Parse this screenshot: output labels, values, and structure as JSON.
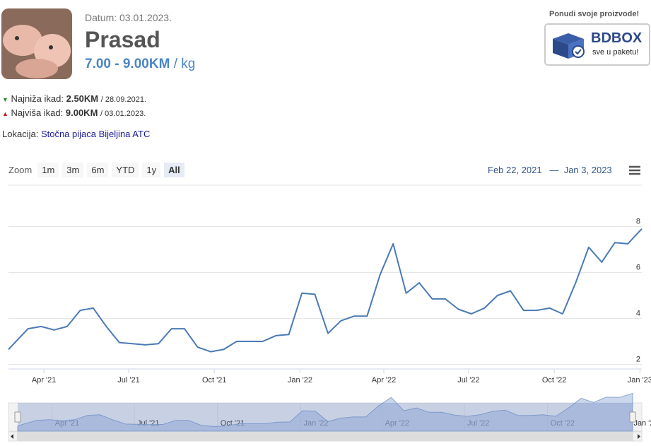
{
  "header": {
    "date": "Datum: 03.01.2023.",
    "title": "Prasad",
    "price": "7.00 - 9.00KM",
    "unit": "/ kg",
    "low_label": "Najniža ikad:",
    "low_value": "2.50KM",
    "low_date": "/ 28.09.2021.",
    "high_label": "Najviša ikad:",
    "high_value": "9.00KM",
    "high_date": "/ 03.01.2023.",
    "location_label": "Lokacija:",
    "location": "Stočna pijaca Bijeljina ATC"
  },
  "banner": {
    "caption": "Ponudi svoje proizvode!",
    "brand": "BDBOX",
    "slogan": "sve u paketu!"
  },
  "toolbar": {
    "zoom": "Zoom",
    "buttons": [
      "1m",
      "3m",
      "6m",
      "YTD",
      "1y",
      "All"
    ],
    "range_from": "Feb 22, 2021",
    "range_sep": "—",
    "range_to": "Jan 3, 2023"
  },
  "chart_data": {
    "type": "line",
    "grid": true,
    "xlim": [
      "2021-02-22",
      "2023-01-03"
    ],
    "xticks": [
      {
        "value": "2021-04-01",
        "label": "Apr '21"
      },
      {
        "value": "2021-07-01",
        "label": "Jul '21"
      },
      {
        "value": "2021-10-01",
        "label": "Oct '21"
      },
      {
        "value": "2022-01-01",
        "label": "Jan '22"
      },
      {
        "value": "2022-04-01",
        "label": "Apr '22"
      },
      {
        "value": "2022-07-01",
        "label": "Jul '22"
      },
      {
        "value": "2022-10-01",
        "label": "Oct '22"
      },
      {
        "value": "2023-01-01",
        "label": "Jan '23"
      }
    ],
    "ylim": [
      1.8,
      9.8
    ],
    "yticks": [
      2,
      4,
      6,
      8
    ],
    "x": [
      "2021-02-22",
      "2021-03-01",
      "2021-03-15",
      "2021-03-29",
      "2021-04-12",
      "2021-04-26",
      "2021-05-10",
      "2021-05-24",
      "2021-06-07",
      "2021-06-21",
      "2021-07-05",
      "2021-07-19",
      "2021-08-02",
      "2021-08-16",
      "2021-08-30",
      "2021-09-13",
      "2021-09-27",
      "2021-10-11",
      "2021-10-25",
      "2021-11-08",
      "2021-11-22",
      "2021-12-06",
      "2021-12-20",
      "2022-01-03",
      "2022-01-17",
      "2022-01-31",
      "2022-02-14",
      "2022-02-28",
      "2022-03-14",
      "2022-03-28",
      "2022-04-11",
      "2022-04-25",
      "2022-05-09",
      "2022-05-23",
      "2022-06-06",
      "2022-06-20",
      "2022-07-04",
      "2022-07-18",
      "2022-08-01",
      "2022-08-15",
      "2022-08-29",
      "2022-09-12",
      "2022-09-26",
      "2022-10-10",
      "2022-10-24",
      "2022-11-07",
      "2022-11-21",
      "2022-12-05",
      "2022-12-19",
      "2023-01-03"
    ],
    "series": [
      {
        "color": "#4a7ab5",
        "values": [
          2.65,
          2.95,
          3.55,
          3.65,
          3.5,
          3.65,
          4.35,
          4.45,
          3.65,
          2.95,
          2.9,
          2.85,
          2.9,
          3.55,
          3.55,
          2.75,
          2.55,
          2.65,
          3.0,
          3.0,
          3.0,
          3.25,
          3.3,
          5.1,
          5.05,
          3.35,
          3.9,
          4.1,
          4.1,
          5.9,
          7.25,
          5.1,
          5.55,
          4.85,
          4.85,
          4.4,
          4.2,
          4.45,
          5.0,
          5.2,
          4.35,
          4.35,
          4.45,
          4.2,
          5.55,
          7.1,
          6.45,
          7.3,
          7.25,
          7.9
        ]
      }
    ]
  }
}
